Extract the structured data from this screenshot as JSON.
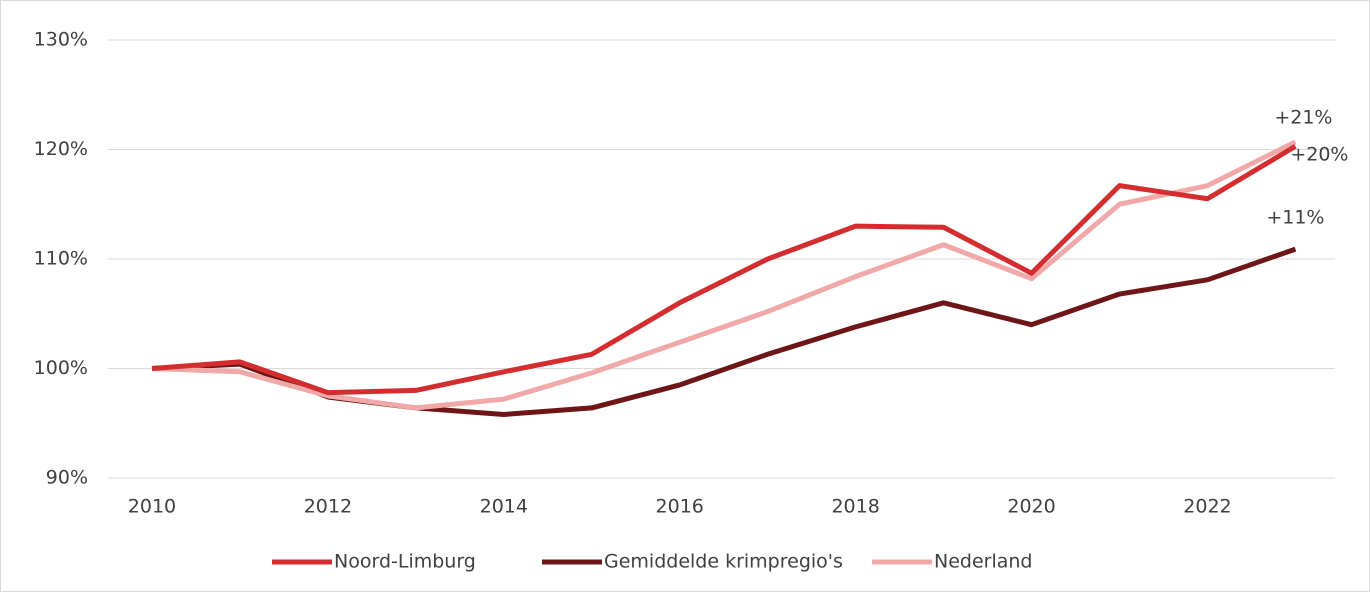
{
  "chart_data": {
    "type": "line",
    "x": [
      2010,
      2011,
      2012,
      2013,
      2014,
      2015,
      2016,
      2017,
      2018,
      2019,
      2020,
      2021,
      2022,
      2023
    ],
    "series": [
      {
        "name": "Noord-Limburg",
        "color": "#d42d2f",
        "end_label": "+20%",
        "values": [
          100,
          100.6,
          97.8,
          98.0,
          99.7,
          101.3,
          106.0,
          110.0,
          113.0,
          112.9,
          108.7,
          116.7,
          115.5,
          120.3
        ]
      },
      {
        "name": "Gemiddelde krimpregio's",
        "color": "#6e1517",
        "end_label": "+11%",
        "values": [
          100,
          100.4,
          97.4,
          96.4,
          95.8,
          96.4,
          98.5,
          101.3,
          103.8,
          106.0,
          104.0,
          106.8,
          108.1,
          110.9
        ]
      },
      {
        "name": "Nederland",
        "color": "#f0a9a8",
        "end_label": "+21%",
        "values": [
          100,
          99.7,
          97.5,
          96.4,
          97.2,
          99.6,
          102.4,
          105.2,
          108.4,
          111.3,
          108.2,
          115.0,
          116.7,
          120.7
        ]
      }
    ],
    "xlim": [
      2009.5,
      2023.45
    ],
    "xticks": [
      2010,
      2012,
      2014,
      2016,
      2018,
      2020,
      2022
    ],
    "ylim": [
      90,
      130
    ],
    "yticks": [
      {
        "value": 90,
        "label": "90%"
      },
      {
        "value": 100,
        "label": "100%"
      },
      {
        "value": 110,
        "label": "110%"
      },
      {
        "value": 120,
        "label": "120%"
      },
      {
        "value": 130,
        "label": "130%"
      }
    ],
    "grid": true,
    "legend": "bottom"
  }
}
